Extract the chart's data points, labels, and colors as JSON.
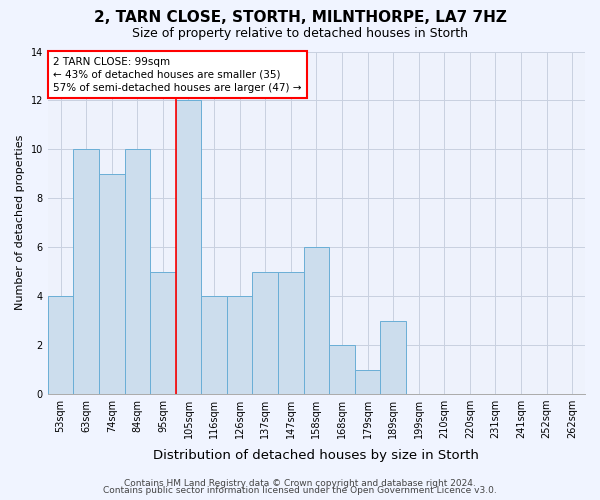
{
  "title": "2, TARN CLOSE, STORTH, MILNTHORPE, LA7 7HZ",
  "subtitle": "Size of property relative to detached houses in Storth",
  "xlabel": "Distribution of detached houses by size in Storth",
  "ylabel": "Number of detached properties",
  "bin_labels": [
    "53sqm",
    "63sqm",
    "74sqm",
    "84sqm",
    "95sqm",
    "105sqm",
    "116sqm",
    "126sqm",
    "137sqm",
    "147sqm",
    "158sqm",
    "168sqm",
    "179sqm",
    "189sqm",
    "199sqm",
    "210sqm",
    "220sqm",
    "231sqm",
    "241sqm",
    "252sqm",
    "262sqm"
  ],
  "bar_heights": [
    4,
    10,
    9,
    10,
    5,
    12,
    4,
    4,
    5,
    5,
    6,
    2,
    1,
    3,
    0,
    0,
    0,
    0,
    0,
    0,
    0
  ],
  "bar_color": "#ccdded",
  "bar_edge_color": "#6aaed6",
  "annotation_text": "2 TARN CLOSE: 99sqm\n← 43% of detached houses are smaller (35)\n57% of semi-detached houses are larger (47) →",
  "annotation_box_color": "white",
  "annotation_box_edge_color": "red",
  "red_line_bar_index": 5,
  "ylim": [
    0,
    14
  ],
  "yticks": [
    0,
    2,
    4,
    6,
    8,
    10,
    12,
    14
  ],
  "footer_line1": "Contains HM Land Registry data © Crown copyright and database right 2024.",
  "footer_line2": "Contains public sector information licensed under the Open Government Licence v3.0.",
  "background_color": "#f0f4ff",
  "plot_bg_color": "#eef2fc",
  "grid_color": "#c8d0e0",
  "title_fontsize": 11,
  "subtitle_fontsize": 9,
  "xlabel_fontsize": 9.5,
  "ylabel_fontsize": 8,
  "tick_fontsize": 7,
  "annotation_fontsize": 7.5,
  "footer_fontsize": 6.5
}
